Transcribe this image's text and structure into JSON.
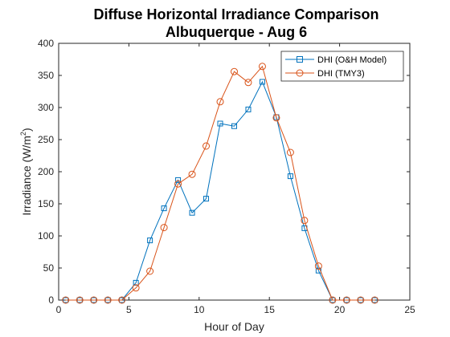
{
  "chart_data": {
    "type": "line",
    "title_line1": "Diffuse Horizontal Irradiance Comparison",
    "title_line2": "Albuquerque - Aug 6",
    "xlabel": "Hour of Day",
    "ylabel_main": "Irradiance (W/m",
    "ylabel_sup": "2",
    "ylabel_end": ")",
    "xlim": [
      0,
      25
    ],
    "ylim": [
      0,
      400
    ],
    "xticks": [
      0,
      5,
      10,
      15,
      20,
      25
    ],
    "yticks": [
      0,
      50,
      100,
      150,
      200,
      250,
      300,
      350,
      400
    ],
    "legend_position": "top-right",
    "grid": false,
    "series": [
      {
        "name": "DHI (O&H Model)",
        "color": "#0072BD",
        "marker": "square",
        "x": [
          0.5,
          1.5,
          2.5,
          3.5,
          4.5,
          5.5,
          6.5,
          7.5,
          8.5,
          9.5,
          10.5,
          11.5,
          12.5,
          13.5,
          14.5,
          15.5,
          16.5,
          17.5,
          18.5,
          19.5,
          20.5,
          21.5,
          22.5
        ],
        "values": [
          0,
          0,
          0,
          0,
          0,
          27,
          93,
          143,
          187,
          136,
          158,
          275,
          271,
          297,
          340,
          285,
          193,
          112,
          46,
          0,
          0,
          0,
          0
        ]
      },
      {
        "name": "DHI (TMY3)",
        "color": "#D95319",
        "marker": "circle",
        "x": [
          0.5,
          1.5,
          2.5,
          3.5,
          4.5,
          5.5,
          6.5,
          7.5,
          8.5,
          9.5,
          10.5,
          11.5,
          12.5,
          13.5,
          14.5,
          15.5,
          16.5,
          17.5,
          18.5,
          19.5,
          20.5,
          21.5,
          22.5
        ],
        "values": [
          0,
          0,
          0,
          0,
          0,
          19,
          45,
          113,
          181,
          196,
          240,
          309,
          356,
          339,
          364,
          284,
          230,
          124,
          53,
          0,
          0,
          0,
          0
        ]
      }
    ]
  }
}
